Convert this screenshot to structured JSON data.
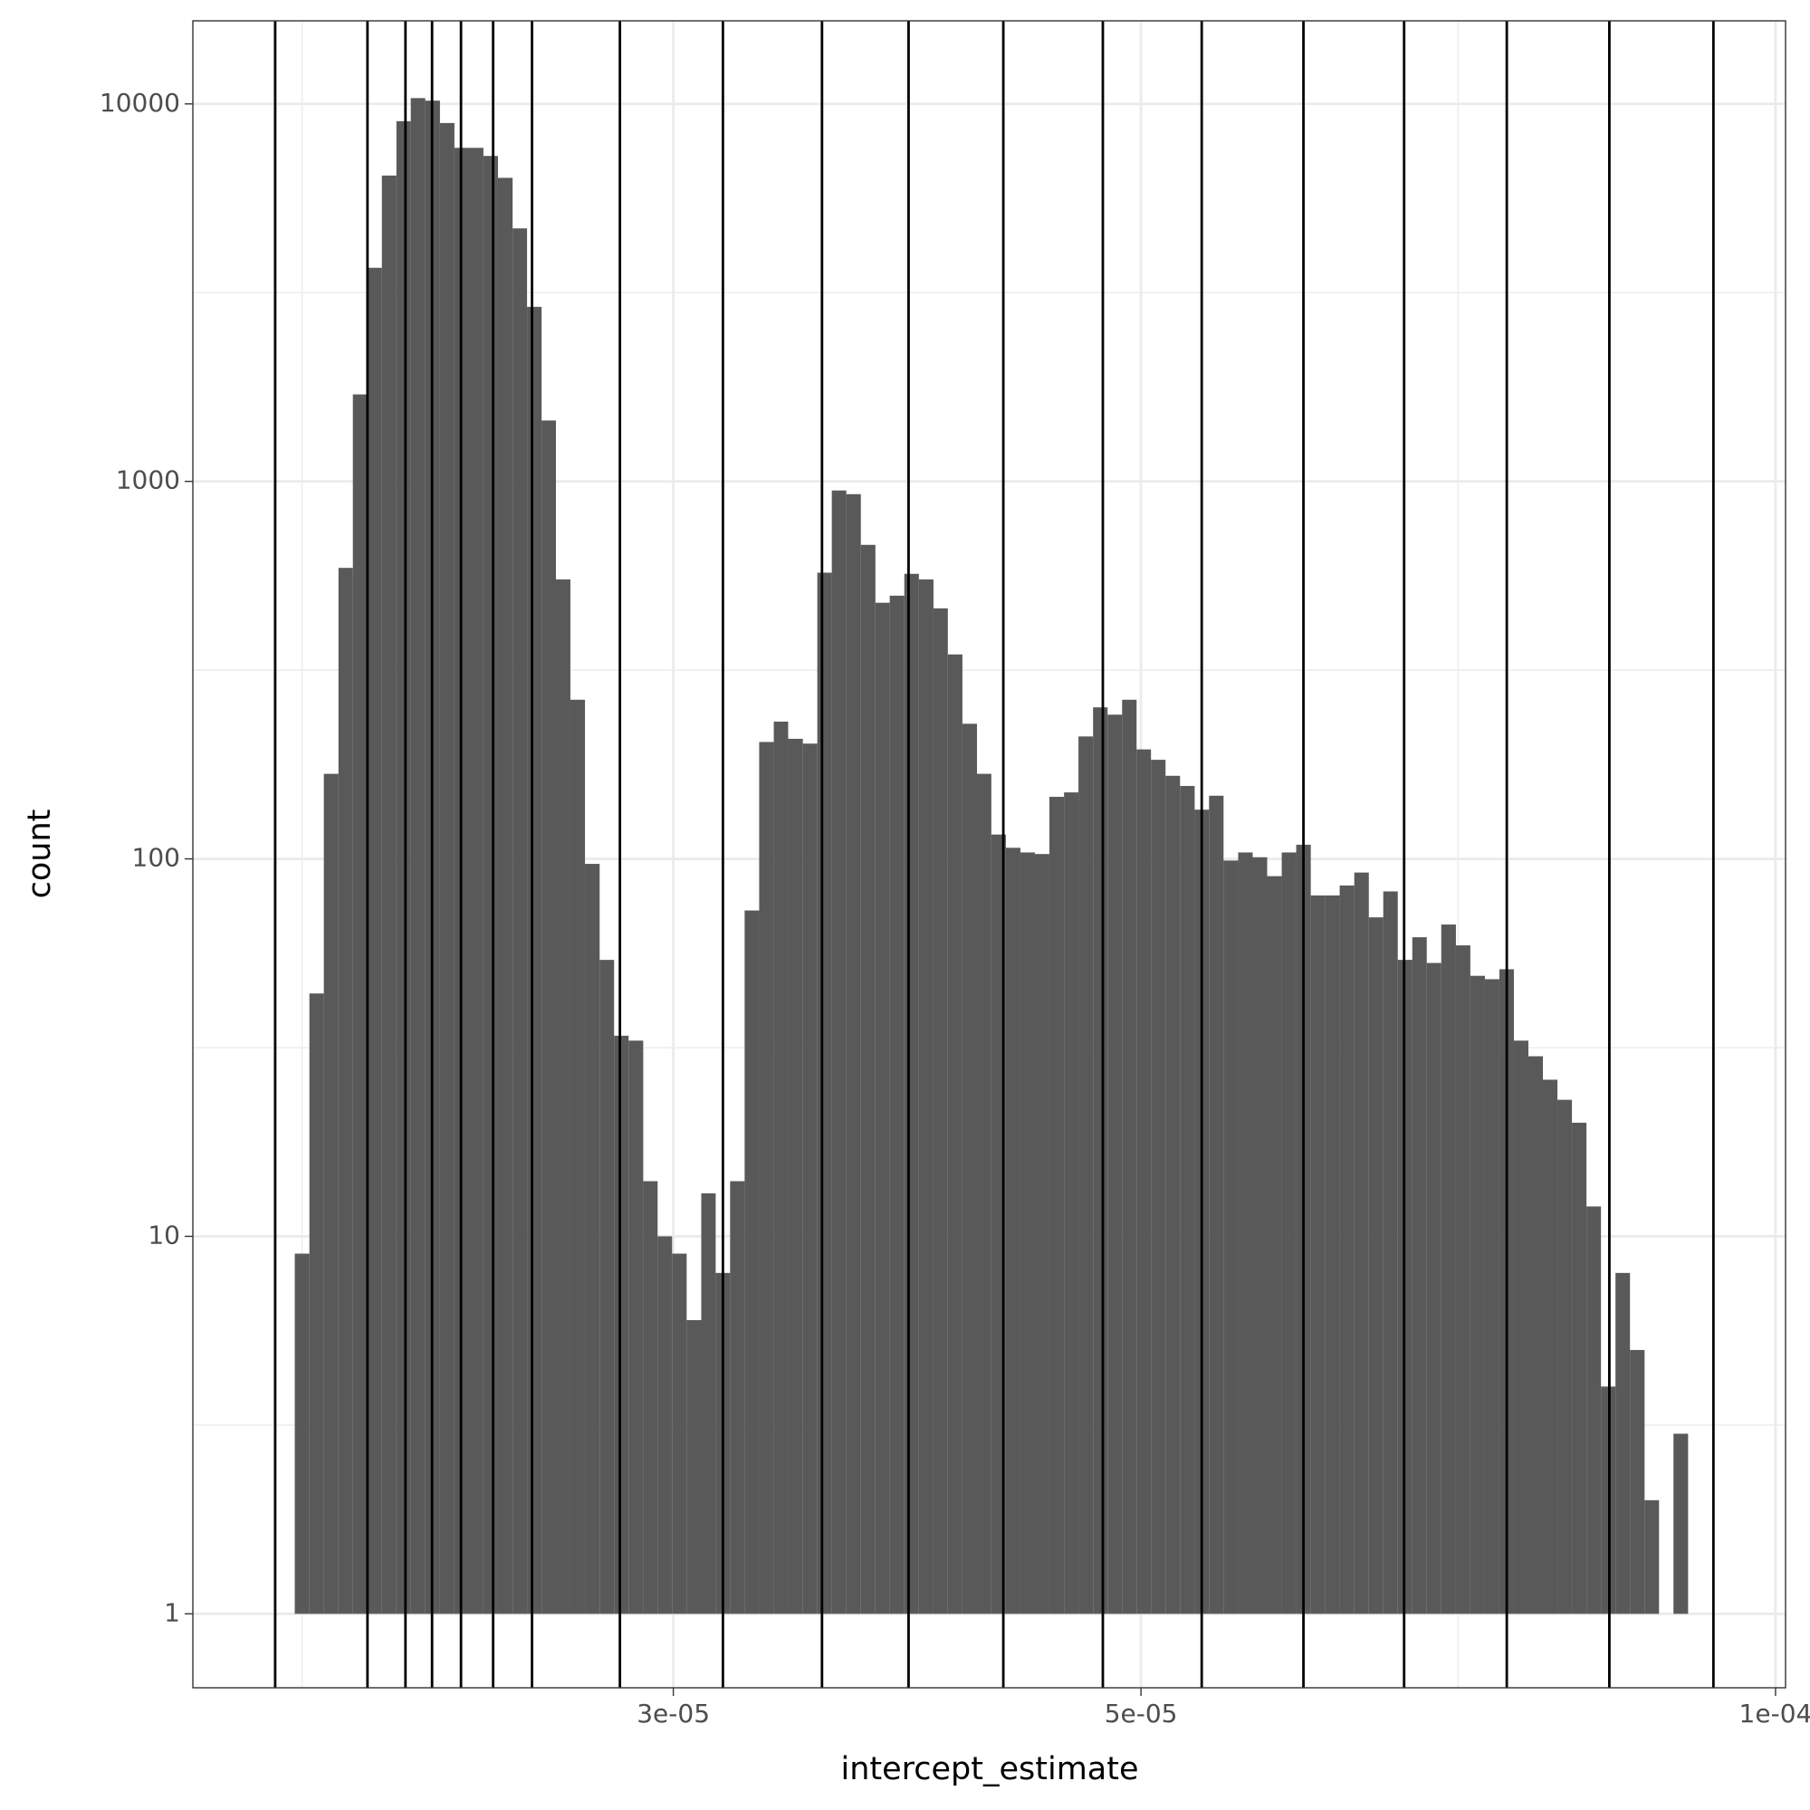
{
  "chart_data": {
    "type": "histogram",
    "x_label": "intercept_estimate",
    "y_label": "count",
    "bins": [
      1.984e-05,
      2.016e-05,
      2.048e-05,
      2.081e-05,
      2.114e-05,
      2.148e-05,
      2.182e-05,
      2.217e-05,
      2.252e-05,
      2.288e-05,
      2.325e-05,
      2.362e-05,
      2.4e-05,
      2.438e-05,
      2.477e-05,
      2.517e-05,
      2.557e-05,
      2.598e-05,
      2.639e-05,
      2.681e-05,
      2.724e-05,
      2.768e-05,
      2.812e-05,
      2.857e-05,
      2.903e-05,
      2.949e-05,
      2.996e-05,
      3.044e-05,
      3.093e-05,
      3.142e-05,
      3.192e-05,
      3.243e-05,
      3.295e-05,
      3.348e-05,
      3.401e-05,
      3.456e-05,
      3.511e-05,
      3.567e-05,
      3.624e-05,
      3.682e-05,
      3.741e-05,
      3.8e-05,
      3.861e-05,
      3.923e-05,
      3.986e-05,
      4.049e-05,
      4.114e-05,
      4.18e-05,
      4.246e-05,
      4.314e-05,
      4.383e-05,
      4.453e-05,
      4.524e-05,
      4.597e-05,
      4.67e-05,
      4.745e-05,
      4.821e-05,
      4.898e-05,
      4.976e-05,
      5.055e-05,
      5.136e-05,
      5.218e-05,
      5.302e-05,
      5.386e-05,
      5.472e-05,
      5.56e-05,
      5.649e-05,
      5.739e-05,
      5.831e-05,
      5.924e-05,
      6.019e-05,
      6.115e-05,
      6.212e-05,
      6.312e-05,
      6.413e-05,
      6.515e-05,
      6.619e-05,
      6.725e-05,
      6.832e-05,
      6.941e-05,
      7.053e-05,
      7.165e-05,
      7.28e-05,
      7.396e-05,
      7.514e-05,
      7.634e-05,
      7.756e-05,
      7.88e-05,
      8.006e-05,
      8.134e-05,
      8.264e-05,
      8.396e-05,
      8.53e-05,
      8.667e-05,
      8.805e-05,
      8.945e-05,
      9.089e-05
    ],
    "values": [
      9,
      44,
      168,
      590,
      1700,
      3680,
      6460,
      9000,
      10360,
      10200,
      8900,
      7650,
      7650,
      7280,
      6370,
      4680,
      2900,
      1450,
      550,
      264,
      97,
      54,
      34,
      33,
      14,
      10,
      9,
      6,
      13,
      8,
      14,
      73,
      204,
      231,
      208,
      202,
      573,
      946,
      925,
      679,
      477,
      498,
      569,
      550,
      461,
      348,
      228,
      168,
      116,
      107,
      104,
      103,
      146,
      150,
      211,
      252,
      241,
      264,
      195,
      183,
      166,
      156,
      135,
      147,
      99,
      104,
      101,
      90,
      104,
      109,
      80,
      80,
      85,
      92,
      70,
      82,
      54,
      62,
      53,
      67,
      59,
      49,
      48,
      51,
      33,
      30,
      26,
      23,
      20,
      12,
      4,
      8,
      5,
      2,
      0,
      3
    ],
    "color": "#595959",
    "vlines": [
      1.942e-05,
      2.148e-05,
      2.239e-05,
      2.305e-05,
      2.379e-05,
      2.464e-05,
      2.571e-05,
      2.83e-05,
      3.167e-05,
      3.529e-05,
      3.879e-05,
      4.302e-05,
      4.796e-05,
      5.343e-05,
      5.971e-05,
      6.665e-05,
      7.456e-05,
      8.34e-05,
      9.344e-05
    ],
    "vline_color": "#000000",
    "x_log": true,
    "y_log": true,
    "xlim": [
      1.775e-05,
      0.0001011
    ],
    "xticks": [
      {
        "value": 3e-05,
        "label": "3e-05"
      },
      {
        "value": 5e-05,
        "label": "5e-05"
      },
      {
        "value": 0.0001,
        "label": "1e-04"
      }
    ],
    "xminorticks": [
      2e-05,
      3.87e-05,
      7.07e-05
    ],
    "ylim": [
      0.637,
      16600
    ],
    "yticks": [
      1,
      10,
      100,
      1000,
      10000
    ],
    "yminorticks": [
      3.162,
      31.62,
      316.2,
      3162
    ],
    "grid": true
  }
}
